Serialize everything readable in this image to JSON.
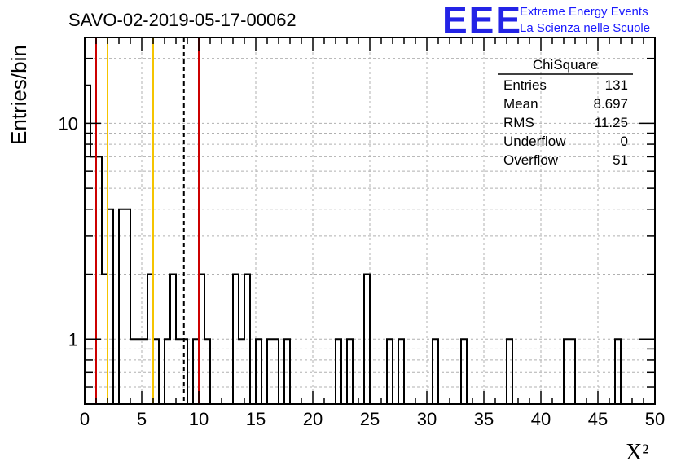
{
  "header": {
    "run_title": "SAVO-02-2019-05-17-00062",
    "logo_text": "EEE",
    "logo_line1": "Extreme Energy Events",
    "logo_line2": "La Scienza nelle Scuole"
  },
  "colors": {
    "frame": "#000000",
    "grid": "#b0b0b0",
    "histogram": "#000000",
    "red_line": "#cc0000",
    "yellow_line": "#f5c400",
    "dashed_line": "#000000",
    "logo": "#2323e6"
  },
  "stats_box": {
    "title": "ChiSquare",
    "rows": [
      {
        "label": "Entries",
        "value": "131"
      },
      {
        "label": "Mean",
        "value": "8.697"
      },
      {
        "label": "RMS",
        "value": "11.25"
      },
      {
        "label": "Underflow",
        "value": "0"
      },
      {
        "label": "Overflow",
        "value": "51"
      }
    ]
  },
  "chart_data": {
    "type": "histogram",
    "title": "SAVO-02-2019-05-17-00062",
    "xlabel": "X²",
    "ylabel": "Entries/bin",
    "xlim": [
      0,
      50
    ],
    "ylim": [
      0.5,
      25
    ],
    "yscale": "log",
    "grid": true,
    "bin_width": 0.5,
    "bins": [
      {
        "x": 0.0,
        "y": 15
      },
      {
        "x": 0.5,
        "y": 7
      },
      {
        "x": 1.0,
        "y": 7
      },
      {
        "x": 1.5,
        "y": 2
      },
      {
        "x": 2.0,
        "y": 4
      },
      {
        "x": 2.5,
        "y": 0
      },
      {
        "x": 3.0,
        "y": 4
      },
      {
        "x": 3.5,
        "y": 4
      },
      {
        "x": 4.0,
        "y": 1
      },
      {
        "x": 4.5,
        "y": 1
      },
      {
        "x": 5.0,
        "y": 1
      },
      {
        "x": 5.5,
        "y": 2
      },
      {
        "x": 6.0,
        "y": 1
      },
      {
        "x": 6.5,
        "y": 0
      },
      {
        "x": 7.0,
        "y": 1
      },
      {
        "x": 7.5,
        "y": 2
      },
      {
        "x": 8.0,
        "y": 1
      },
      {
        "x": 8.5,
        "y": 1
      },
      {
        "x": 9.0,
        "y": 0
      },
      {
        "x": 9.5,
        "y": 1
      },
      {
        "x": 10.0,
        "y": 2
      },
      {
        "x": 10.5,
        "y": 1
      },
      {
        "x": 13.0,
        "y": 2
      },
      {
        "x": 13.5,
        "y": 1
      },
      {
        "x": 14.0,
        "y": 2
      },
      {
        "x": 14.5,
        "y": 0
      },
      {
        "x": 15.0,
        "y": 1
      },
      {
        "x": 15.5,
        "y": 0
      },
      {
        "x": 16.0,
        "y": 1
      },
      {
        "x": 16.5,
        "y": 1
      },
      {
        "x": 17.0,
        "y": 0
      },
      {
        "x": 17.5,
        "y": 1
      },
      {
        "x": 22.0,
        "y": 1
      },
      {
        "x": 23.0,
        "y": 1
      },
      {
        "x": 24.5,
        "y": 2
      },
      {
        "x": 26.5,
        "y": 1
      },
      {
        "x": 27.5,
        "y": 1
      },
      {
        "x": 30.5,
        "y": 1
      },
      {
        "x": 33.0,
        "y": 1
      },
      {
        "x": 37.0,
        "y": 1
      },
      {
        "x": 42.0,
        "y": 1
      },
      {
        "x": 42.5,
        "y": 1
      },
      {
        "x": 46.5,
        "y": 1
      }
    ],
    "vertical_lines": [
      {
        "x": 1.0,
        "color": "red",
        "style": "solid"
      },
      {
        "x": 2.0,
        "color": "yellow",
        "style": "solid"
      },
      {
        "x": 6.0,
        "color": "yellow",
        "style": "solid"
      },
      {
        "x": 8.697,
        "color": "black",
        "style": "dashed"
      },
      {
        "x": 10.0,
        "color": "red",
        "style": "solid"
      }
    ],
    "x_ticks": [
      "0",
      "5",
      "10",
      "15",
      "20",
      "25",
      "30",
      "35",
      "40",
      "45",
      "50"
    ],
    "y_tick_labels": [
      {
        "value": 1,
        "label": "1"
      },
      {
        "value": 10,
        "label": "10"
      }
    ]
  }
}
